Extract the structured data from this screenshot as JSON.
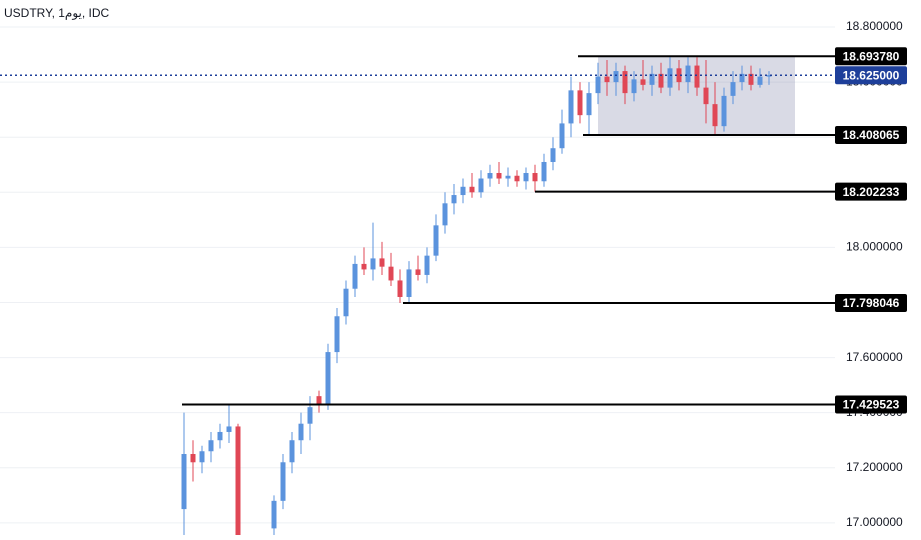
{
  "chart_data": {
    "type": "candlestick",
    "title": "USDTRY, 1يوم, IDC",
    "up_color": "#5b93dd",
    "down_color": "#e04755",
    "ylim": [
      16.956,
      18.898
    ],
    "yticks": [
      {
        "value": 17.0,
        "label": "17.000000"
      },
      {
        "value": 17.2,
        "label": "17.200000"
      },
      {
        "value": 17.4,
        "label": "17.400000"
      },
      {
        "value": 17.6,
        "label": "17.600000"
      },
      {
        "value": 17.8,
        "label": "17.800000"
      },
      {
        "value": 18.0,
        "label": "18.000000"
      },
      {
        "value": 18.2,
        "label": "18.200000"
      },
      {
        "value": 18.4,
        "label": "18.400000"
      },
      {
        "value": 18.6,
        "label": "18.600000"
      },
      {
        "value": 18.8,
        "label": "18.800000"
      }
    ],
    "grid": true,
    "candles": [
      [
        17.05,
        17.4,
        16.9,
        17.25
      ],
      [
        17.25,
        17.3,
        17.15,
        17.22
      ],
      [
        17.22,
        17.28,
        17.18,
        17.26
      ],
      [
        17.26,
        17.33,
        17.22,
        17.3
      ],
      [
        17.3,
        17.36,
        17.27,
        17.33
      ],
      [
        17.33,
        17.43,
        17.29,
        17.35
      ],
      [
        17.35,
        17.36,
        16.9,
        16.95
      ],
      null,
      null,
      null,
      [
        16.98,
        17.1,
        16.9,
        17.08
      ],
      [
        17.08,
        17.25,
        17.05,
        17.22
      ],
      [
        17.22,
        17.33,
        17.18,
        17.3
      ],
      [
        17.3,
        17.4,
        17.25,
        17.36
      ],
      [
        17.36,
        17.46,
        17.3,
        17.42
      ],
      [
        17.46,
        17.48,
        17.4,
        17.43
      ],
      [
        17.43,
        17.65,
        17.41,
        17.62
      ],
      [
        17.62,
        17.78,
        17.58,
        17.75
      ],
      [
        17.75,
        17.88,
        17.72,
        17.85
      ],
      [
        17.85,
        17.97,
        17.82,
        17.94
      ],
      [
        17.94,
        18.0,
        17.9,
        17.92
      ],
      [
        17.92,
        18.09,
        17.88,
        17.96
      ],
      [
        17.96,
        18.02,
        17.9,
        17.93
      ],
      [
        17.93,
        17.98,
        17.86,
        17.88
      ],
      [
        17.88,
        17.92,
        17.798,
        17.82
      ],
      [
        17.82,
        17.95,
        17.8,
        17.92
      ],
      [
        17.92,
        17.97,
        17.88,
        17.9
      ],
      [
        17.9,
        18.0,
        17.87,
        17.97
      ],
      [
        17.97,
        18.12,
        17.95,
        18.08
      ],
      [
        18.08,
        18.2,
        18.05,
        18.16
      ],
      [
        18.16,
        18.23,
        18.12,
        18.19
      ],
      [
        18.19,
        18.25,
        18.16,
        18.22
      ],
      [
        18.22,
        18.27,
        18.18,
        18.2
      ],
      [
        18.2,
        18.28,
        18.18,
        18.25
      ],
      [
        18.25,
        18.3,
        18.22,
        18.27
      ],
      [
        18.27,
        18.31,
        18.23,
        18.25
      ],
      [
        18.25,
        18.29,
        18.22,
        18.26
      ],
      [
        18.26,
        18.28,
        18.22,
        18.24
      ],
      [
        18.24,
        18.29,
        18.21,
        18.27
      ],
      [
        18.27,
        18.3,
        18.202,
        18.24
      ],
      [
        18.24,
        18.34,
        18.22,
        18.31
      ],
      [
        18.31,
        18.4,
        18.28,
        18.36
      ],
      [
        18.36,
        18.5,
        18.34,
        18.45
      ],
      [
        18.45,
        18.62,
        18.4,
        18.57
      ],
      [
        18.57,
        18.6,
        18.45,
        18.48
      ],
      [
        18.48,
        18.6,
        18.41,
        18.56
      ],
      [
        18.56,
        18.67,
        18.52,
        18.62
      ],
      [
        18.62,
        18.68,
        18.55,
        18.6
      ],
      [
        18.6,
        18.67,
        18.55,
        18.64
      ],
      [
        18.64,
        18.66,
        18.52,
        18.56
      ],
      [
        18.56,
        18.64,
        18.53,
        18.61
      ],
      [
        18.61,
        18.68,
        18.57,
        18.59
      ],
      [
        18.59,
        18.66,
        18.55,
        18.63
      ],
      [
        18.63,
        18.67,
        18.56,
        18.58
      ],
      [
        18.58,
        18.69,
        18.55,
        18.65
      ],
      [
        18.65,
        18.68,
        18.57,
        18.6
      ],
      [
        18.6,
        18.69,
        18.56,
        18.66
      ],
      [
        18.66,
        18.69,
        18.55,
        18.58
      ],
      [
        18.58,
        18.68,
        18.45,
        18.52
      ],
      [
        18.52,
        18.6,
        18.41,
        18.44
      ],
      [
        18.44,
        18.58,
        18.42,
        18.55
      ],
      [
        18.55,
        18.64,
        18.52,
        18.6
      ],
      [
        18.6,
        18.66,
        18.57,
        18.63
      ],
      [
        18.63,
        18.66,
        18.57,
        18.59
      ],
      [
        18.59,
        18.65,
        18.58,
        18.62
      ],
      [
        18.62,
        18.64,
        18.59,
        18.625
      ]
    ],
    "levels": [
      {
        "value": 18.69378,
        "label": "18.693780"
      },
      {
        "value": 18.408065,
        "label": "18.408065"
      },
      {
        "value": 18.202233,
        "label": "18.202233"
      },
      {
        "value": 17.798046,
        "label": "17.798046"
      },
      {
        "value": 17.429523,
        "label": "17.429523"
      }
    ],
    "last_price": {
      "value": 18.625,
      "label": "18.625000",
      "color": "#1e3f9a"
    }
  }
}
